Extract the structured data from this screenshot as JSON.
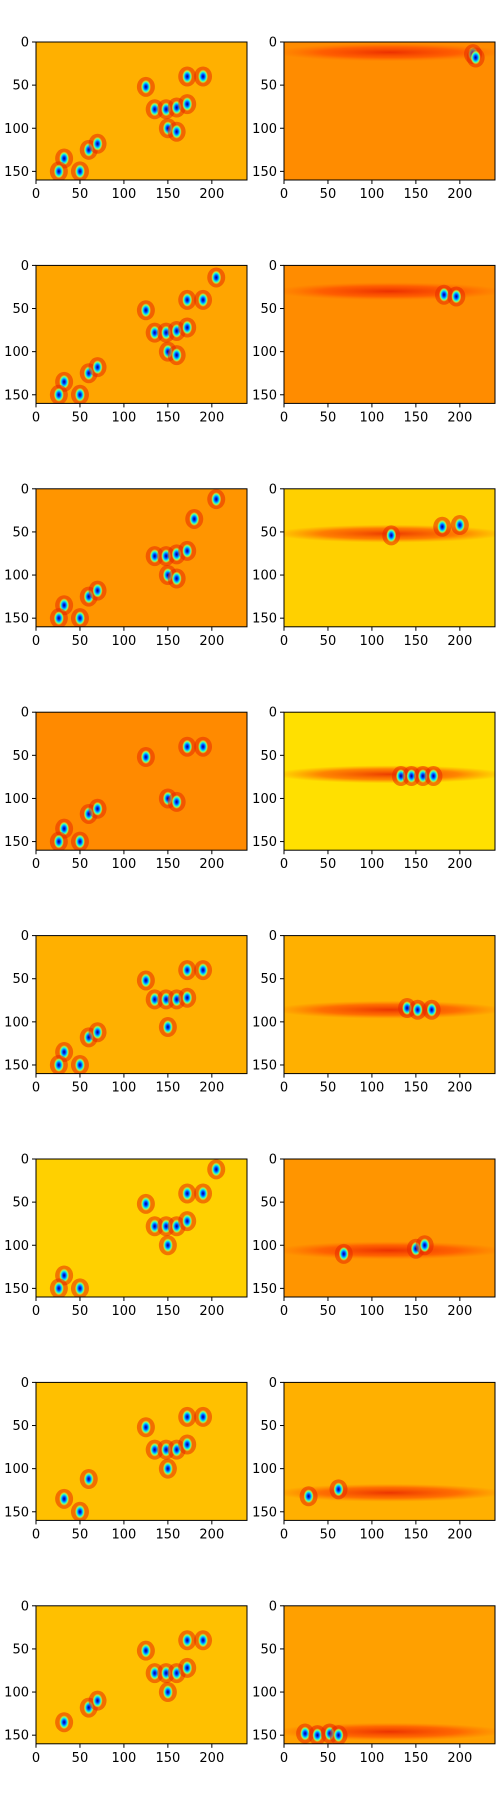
{
  "figure": {
    "rows": 8,
    "cols": 2,
    "colormap": "jet",
    "panel_background": "#ff8c00"
  },
  "chart_data": {
    "type": "heatmap",
    "panel_count": 16,
    "xlim": [
      0,
      240
    ],
    "ylim": [
      160,
      0
    ],
    "x_ticks": [
      0,
      50,
      100,
      150,
      200
    ],
    "y_ticks": [
      0,
      50,
      100,
      150
    ],
    "x_tick_labels": [
      "0",
      "50",
      "100",
      "150",
      "200"
    ],
    "y_tick_labels": [
      "0",
      "50",
      "100",
      "150"
    ],
    "grid": false,
    "colormap": "jet",
    "panels": [
      {
        "row": 0,
        "col": 0,
        "background": "#ffb000",
        "band_y": null,
        "hotspots": [
          [
            135,
            78
          ],
          [
            148,
            78
          ],
          [
            160,
            76
          ],
          [
            172,
            72
          ],
          [
            150,
            100
          ],
          [
            160,
            104
          ],
          [
            125,
            52
          ],
          [
            172,
            40
          ],
          [
            190,
            40
          ],
          [
            60,
            125
          ],
          [
            70,
            118
          ],
          [
            32,
            135
          ],
          [
            50,
            150
          ],
          [
            26,
            150
          ]
        ]
      },
      {
        "row": 0,
        "col": 1,
        "background": "#ff8c00",
        "band_y": 12,
        "hotspots": [
          [
            215,
            14
          ],
          [
            218,
            18
          ]
        ]
      },
      {
        "row": 1,
        "col": 0,
        "background": "#ffa500",
        "band_y": null,
        "hotspots": [
          [
            135,
            78
          ],
          [
            148,
            78
          ],
          [
            160,
            76
          ],
          [
            172,
            72
          ],
          [
            150,
            100
          ],
          [
            160,
            104
          ],
          [
            125,
            52
          ],
          [
            172,
            40
          ],
          [
            190,
            40
          ],
          [
            205,
            14
          ],
          [
            60,
            125
          ],
          [
            70,
            118
          ],
          [
            32,
            135
          ],
          [
            50,
            150
          ],
          [
            26,
            150
          ]
        ]
      },
      {
        "row": 1,
        "col": 1,
        "background": "#ff8c00",
        "band_y": 30,
        "hotspots": [
          [
            182,
            34
          ],
          [
            196,
            36
          ]
        ]
      },
      {
        "row": 2,
        "col": 0,
        "background": "#ff9500",
        "band_y": null,
        "hotspots": [
          [
            135,
            78
          ],
          [
            148,
            78
          ],
          [
            160,
            76
          ],
          [
            172,
            72
          ],
          [
            150,
            100
          ],
          [
            160,
            104
          ],
          [
            180,
            35
          ],
          [
            205,
            12
          ],
          [
            60,
            125
          ],
          [
            70,
            118
          ],
          [
            32,
            135
          ],
          [
            50,
            150
          ],
          [
            26,
            150
          ]
        ]
      },
      {
        "row": 2,
        "col": 1,
        "background": "#ffd000",
        "band_y": 52,
        "hotspots": [
          [
            122,
            54
          ],
          [
            180,
            44
          ],
          [
            200,
            42
          ]
        ]
      },
      {
        "row": 3,
        "col": 0,
        "background": "#ff8a00",
        "band_y": null,
        "hotspots": [
          [
            150,
            100
          ],
          [
            160,
            104
          ],
          [
            125,
            52
          ],
          [
            172,
            40
          ],
          [
            190,
            40
          ],
          [
            60,
            118
          ],
          [
            70,
            112
          ],
          [
            32,
            135
          ],
          [
            50,
            150
          ],
          [
            26,
            150
          ]
        ]
      },
      {
        "row": 3,
        "col": 1,
        "background": "#ffe000",
        "band_y": 72,
        "hotspots": [
          [
            133,
            74
          ],
          [
            145,
            74
          ],
          [
            158,
            74
          ],
          [
            170,
            74
          ]
        ]
      },
      {
        "row": 4,
        "col": 0,
        "background": "#ffb000",
        "band_y": null,
        "hotspots": [
          [
            135,
            74
          ],
          [
            148,
            74
          ],
          [
            160,
            74
          ],
          [
            172,
            72
          ],
          [
            150,
            106
          ],
          [
            125,
            52
          ],
          [
            172,
            40
          ],
          [
            190,
            40
          ],
          [
            60,
            118
          ],
          [
            70,
            112
          ],
          [
            32,
            135
          ],
          [
            50,
            150
          ],
          [
            26,
            150
          ]
        ]
      },
      {
        "row": 4,
        "col": 1,
        "background": "#ffb000",
        "band_y": 86,
        "hotspots": [
          [
            140,
            84
          ],
          [
            152,
            86
          ],
          [
            168,
            86
          ]
        ]
      },
      {
        "row": 5,
        "col": 0,
        "background": "#ffd000",
        "band_y": null,
        "hotspots": [
          [
            135,
            78
          ],
          [
            148,
            78
          ],
          [
            160,
            78
          ],
          [
            172,
            72
          ],
          [
            150,
            100
          ],
          [
            125,
            52
          ],
          [
            172,
            40
          ],
          [
            190,
            40
          ],
          [
            205,
            12
          ],
          [
            32,
            135
          ],
          [
            50,
            150
          ],
          [
            26,
            150
          ]
        ]
      },
      {
        "row": 5,
        "col": 1,
        "background": "#ff9500",
        "band_y": 106,
        "hotspots": [
          [
            68,
            110
          ],
          [
            150,
            104
          ],
          [
            160,
            100
          ]
        ]
      },
      {
        "row": 6,
        "col": 0,
        "background": "#ffc000",
        "band_y": null,
        "hotspots": [
          [
            135,
            78
          ],
          [
            148,
            78
          ],
          [
            160,
            78
          ],
          [
            172,
            72
          ],
          [
            150,
            100
          ],
          [
            125,
            52
          ],
          [
            172,
            40
          ],
          [
            190,
            40
          ],
          [
            60,
            112
          ],
          [
            32,
            135
          ],
          [
            50,
            150
          ]
        ]
      },
      {
        "row": 6,
        "col": 1,
        "background": "#ffb000",
        "band_y": 128,
        "hotspots": [
          [
            28,
            132
          ],
          [
            62,
            124
          ]
        ]
      },
      {
        "row": 7,
        "col": 0,
        "background": "#ffc000",
        "band_y": null,
        "hotspots": [
          [
            135,
            78
          ],
          [
            148,
            78
          ],
          [
            160,
            78
          ],
          [
            172,
            72
          ],
          [
            150,
            100
          ],
          [
            125,
            52
          ],
          [
            172,
            40
          ],
          [
            190,
            40
          ],
          [
            60,
            118
          ],
          [
            70,
            110
          ],
          [
            32,
            135
          ]
        ]
      },
      {
        "row": 7,
        "col": 1,
        "background": "#ffa000",
        "band_y": 146,
        "hotspots": [
          [
            24,
            148
          ],
          [
            38,
            150
          ],
          [
            52,
            148
          ],
          [
            62,
            150
          ]
        ]
      }
    ]
  }
}
